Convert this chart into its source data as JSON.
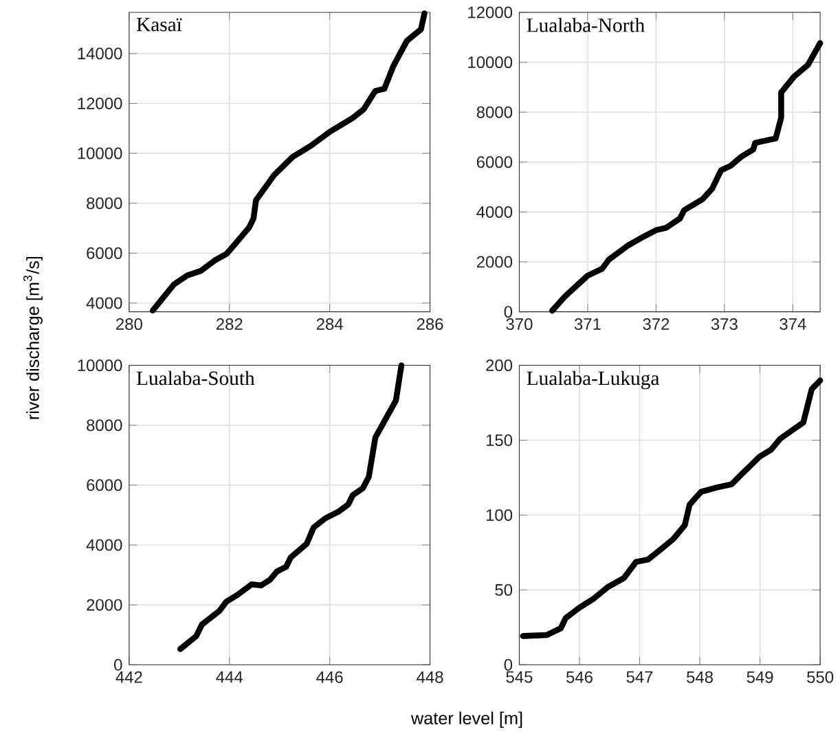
{
  "chart_data": [
    {
      "type": "line",
      "title": "Kasaï",
      "ylabel": "river discharge [m$^{3}$/s]",
      "xlim": [
        280,
        286
      ],
      "ylim": [
        3650,
        15650
      ],
      "xticks": [
        280,
        282,
        284,
        286
      ],
      "yticks": [
        4000,
        6000,
        8000,
        10000,
        12000,
        14000
      ],
      "grid": true,
      "color": "#000000",
      "x": [
        280.47,
        280.89,
        281.16,
        281.43,
        281.71,
        281.94,
        282.16,
        282.39,
        282.48,
        282.53,
        282.76,
        282.89,
        283.26,
        283.63,
        284.0,
        284.45,
        284.68,
        284.91,
        285.09,
        285.27,
        285.54,
        285.82,
        285.89
      ],
      "values": [
        3700,
        4740,
        5105,
        5290,
        5710,
        5965,
        6475,
        7020,
        7390,
        8120,
        8760,
        9125,
        9855,
        10310,
        10860,
        11405,
        11770,
        12500,
        12590,
        13500,
        14510,
        14970,
        15610
      ]
    },
    {
      "type": "line",
      "title": "Lualaba-North",
      "xlim": [
        370,
        374.4
      ],
      "ylim": [
        0,
        12000
      ],
      "xticks": [
        370,
        371,
        372,
        373,
        374
      ],
      "yticks": [
        0,
        2000,
        4000,
        6000,
        8000,
        10000,
        12000
      ],
      "grid": true,
      "color": "#000000",
      "x": [
        370.48,
        370.67,
        371.0,
        371.21,
        371.31,
        371.58,
        371.81,
        372.01,
        372.15,
        372.35,
        372.41,
        372.68,
        372.82,
        372.95,
        373.09,
        373.25,
        373.42,
        373.45,
        373.75,
        373.83,
        373.83,
        374.02,
        374.22,
        374.4
      ],
      "values": [
        40,
        620,
        1450,
        1720,
        2090,
        2640,
        3000,
        3280,
        3370,
        3740,
        4070,
        4510,
        4930,
        5670,
        5850,
        6220,
        6500,
        6770,
        6950,
        7780,
        8790,
        9430,
        9890,
        10770
      ]
    },
    {
      "type": "line",
      "title": "Lualaba-South",
      "xlabel": "water level [m]",
      "xlim": [
        442,
        448
      ],
      "ylim": [
        0,
        10000
      ],
      "xticks": [
        442,
        444,
        446,
        448
      ],
      "yticks": [
        0,
        2000,
        4000,
        6000,
        8000,
        10000
      ],
      "grid": true,
      "color": "#000000",
      "x": [
        443.02,
        443.34,
        443.45,
        443.8,
        443.94,
        444.17,
        444.44,
        444.63,
        444.81,
        444.95,
        445.13,
        445.22,
        445.54,
        445.68,
        445.91,
        446.18,
        446.37,
        446.46,
        446.66,
        446.78,
        446.91,
        447.32,
        447.43
      ],
      "values": [
        525,
        960,
        1340,
        1800,
        2110,
        2345,
        2685,
        2650,
        2840,
        3120,
        3270,
        3580,
        4040,
        4585,
        4890,
        5120,
        5355,
        5665,
        5895,
        6280,
        7590,
        8825,
        10000
      ]
    },
    {
      "type": "line",
      "title": "Lualaba-Lukuga",
      "xlim": [
        545,
        550
      ],
      "ylim": [
        0,
        200
      ],
      "xticks": [
        545,
        546,
        547,
        548,
        549,
        550
      ],
      "yticks": [
        0,
        50,
        100,
        150,
        200
      ],
      "grid": true,
      "color": "#000000",
      "x": [
        545.06,
        545.46,
        545.69,
        545.77,
        546.0,
        546.24,
        546.47,
        546.74,
        546.94,
        547.14,
        547.33,
        547.56,
        547.75,
        547.83,
        548.02,
        548.29,
        548.53,
        548.68,
        548.99,
        549.18,
        549.34,
        549.72,
        549.86,
        550.0
      ],
      "values": [
        19.2,
        19.9,
        24.4,
        31.2,
        38.2,
        44.3,
        51.9,
        58.0,
        68.7,
        70.3,
        76.4,
        84.0,
        93.2,
        106.9,
        115.5,
        118.5,
        120.6,
        126.7,
        138.9,
        143.5,
        151.1,
        161.8,
        184.1,
        189.9
      ]
    }
  ]
}
